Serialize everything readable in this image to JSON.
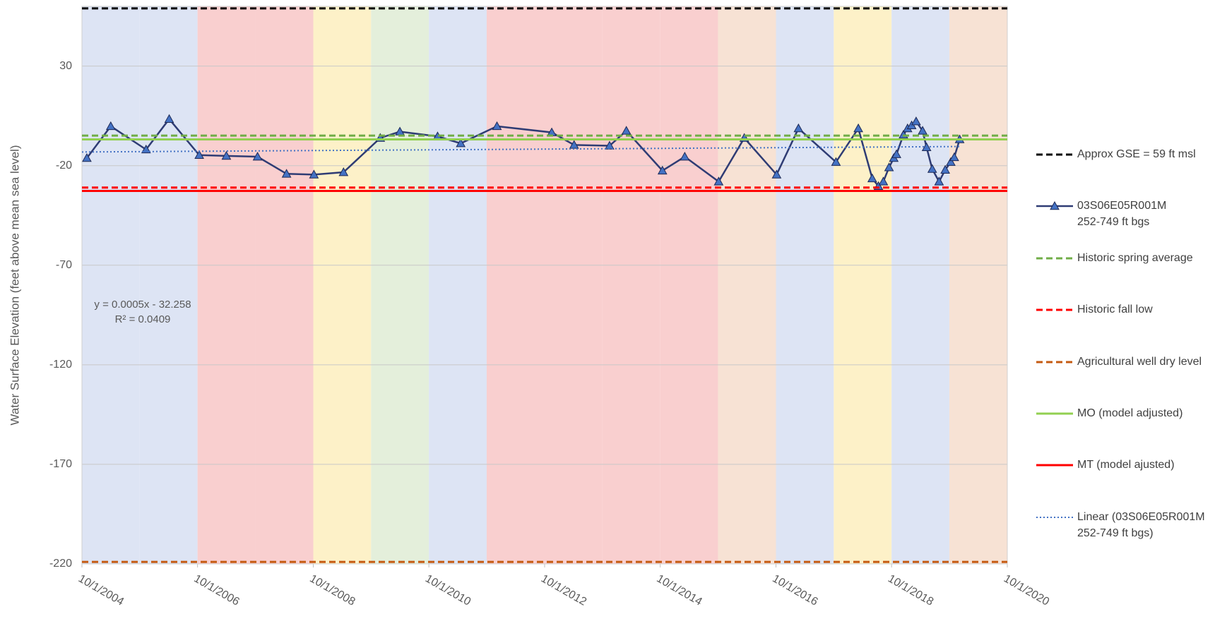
{
  "chart_data": {
    "type": "line",
    "y_axis_label": "Water Surface Elevation (feet above mean sea level)",
    "ylim": [
      -220,
      60
    ],
    "yticks": [
      -220,
      -170,
      -120,
      -70,
      -20,
      30
    ],
    "xlim": [
      "10/1/2004",
      "10/1/2020"
    ],
    "xticks": [
      "10/1/2004",
      "10/1/2006",
      "10/1/2008",
      "10/1/2010",
      "10/1/2012",
      "10/1/2014",
      "10/1/2016",
      "10/1/2018",
      "10/1/2020"
    ],
    "grid": true,
    "legend": "right",
    "bands": [
      {
        "start": "10/1/2004",
        "end": "10/1/2005",
        "color": "#dde4f4"
      },
      {
        "start": "10/1/2005",
        "end": "10/1/2006",
        "color": "#dde4f4"
      },
      {
        "start": "10/1/2006",
        "end": "10/1/2007",
        "color": "#f9cfcf"
      },
      {
        "start": "10/1/2007",
        "end": "10/1/2008",
        "color": "#f9cfcf"
      },
      {
        "start": "10/1/2008",
        "end": "10/1/2009",
        "color": "#fdf1c8"
      },
      {
        "start": "10/1/2009",
        "end": "10/1/2010",
        "color": "#e4efdb"
      },
      {
        "start": "10/1/2010",
        "end": "10/1/2011",
        "color": "#dde4f4"
      },
      {
        "start": "10/1/2011",
        "end": "10/1/2012",
        "color": "#f9cfcf"
      },
      {
        "start": "10/1/2012",
        "end": "10/1/2013",
        "color": "#f9cfcf"
      },
      {
        "start": "10/1/2013",
        "end": "10/1/2014",
        "color": "#f9cfcf"
      },
      {
        "start": "10/1/2014",
        "end": "10/1/2015",
        "color": "#f9cfcf"
      },
      {
        "start": "10/1/2015",
        "end": "10/1/2016",
        "color": "#f7e2d4"
      },
      {
        "start": "10/1/2016",
        "end": "10/1/2017",
        "color": "#dde4f4"
      },
      {
        "start": "10/1/2017",
        "end": "10/1/2018",
        "color": "#fdf1c8"
      },
      {
        "start": "10/1/2018",
        "end": "10/1/2019",
        "color": "#dde4f4"
      },
      {
        "start": "10/1/2019",
        "end": "10/1/2020",
        "color": "#f7e2d4"
      }
    ],
    "series": [
      {
        "name": "Approx GSE = 59 ft msl",
        "color": "#000000",
        "style": "dashed",
        "value": 59
      },
      {
        "name": "03S06E05R001M\n252-749 ft bgs",
        "color": "#2f3c74",
        "marker_color": "#4472c4",
        "style": "solid",
        "marker": "triangle",
        "x": [
          "11/1/2004",
          "4/1/2005",
          "11/10/2005",
          "4/5/2006",
          "10/12/2006",
          "4/1/2007",
          "10/15/2007",
          "4/15/2008",
          "10/5/2008",
          "4/10/2009",
          "11/28/2009",
          "4/1/2010",
          "11/25/2010",
          "4/20/2011",
          "12/5/2011",
          "11/15/2012",
          "4/5/2013",
          "11/15/2013",
          "3/1/2014",
          "10/15/2014",
          "3/5/2015",
          "10/5/2015",
          "3/15/2016",
          "10/5/2016",
          "2/20/2017",
          "10/15/2017",
          "3/5/2018",
          "6/1/2018",
          "7/10/2018",
          "8/10/2018",
          "9/15/2018",
          "10/15/2018",
          "11/1/2018",
          "12/15/2018",
          "1/10/2019",
          "2/5/2019",
          "3/5/2019",
          "4/15/2019",
          "5/10/2019",
          "6/15/2019",
          "7/28/2019",
          "9/5/2019",
          "10/10/2019",
          "11/1/2019",
          "12/5/2019"
        ],
        "values": [
          -16.2,
          -0.2,
          -11.9,
          3.4,
          -14.7,
          -15.1,
          -15.5,
          -24.1,
          -24.5,
          -23.3,
          -6.1,
          -2.9,
          -5.3,
          -8.8,
          -0.2,
          -3.3,
          -9.6,
          -10.0,
          -2.5,
          -22.5,
          -15.5,
          -28.0,
          -6.1,
          -24.5,
          -1.3,
          -18.2,
          -1.3,
          -26.4,
          -30.3,
          -28.0,
          -20.9,
          -16.2,
          -14.3,
          -4.5,
          -1.3,
          0.2,
          2.2,
          -2.5,
          -10.8,
          -21.7,
          -28.0,
          -22.1,
          -18.2,
          -15.8,
          -6.8
        ]
      },
      {
        "name": "Historic spring average",
        "color": "#70ad47",
        "style": "dashed",
        "value": -4.9
      },
      {
        "name": "Historic fall low",
        "color": "#ff0000",
        "style": "dashed",
        "value": -31
      },
      {
        "name": "Agricultural well dry level",
        "color": "#c55a11",
        "style": "dashed",
        "value": -219
      },
      {
        "name": "MO (model adjusted)",
        "color": "#92d050",
        "style": "solid",
        "value": -6.8
      },
      {
        "name": "MT (model ajusted)",
        "color": "#ff0000",
        "style": "solid",
        "value": -32.7
      },
      {
        "name": "Linear (03S06E05R001M\n252-749 ft bgs)",
        "color": "#4472c4",
        "style": "dotted",
        "x": [
          "10/1/2004",
          "12/5/2019"
        ],
        "values": [
          -13.13,
          -10.39
        ]
      }
    ],
    "annotations": [
      "y = 0.0005x - 32.258",
      "R² = 0.0409"
    ]
  }
}
